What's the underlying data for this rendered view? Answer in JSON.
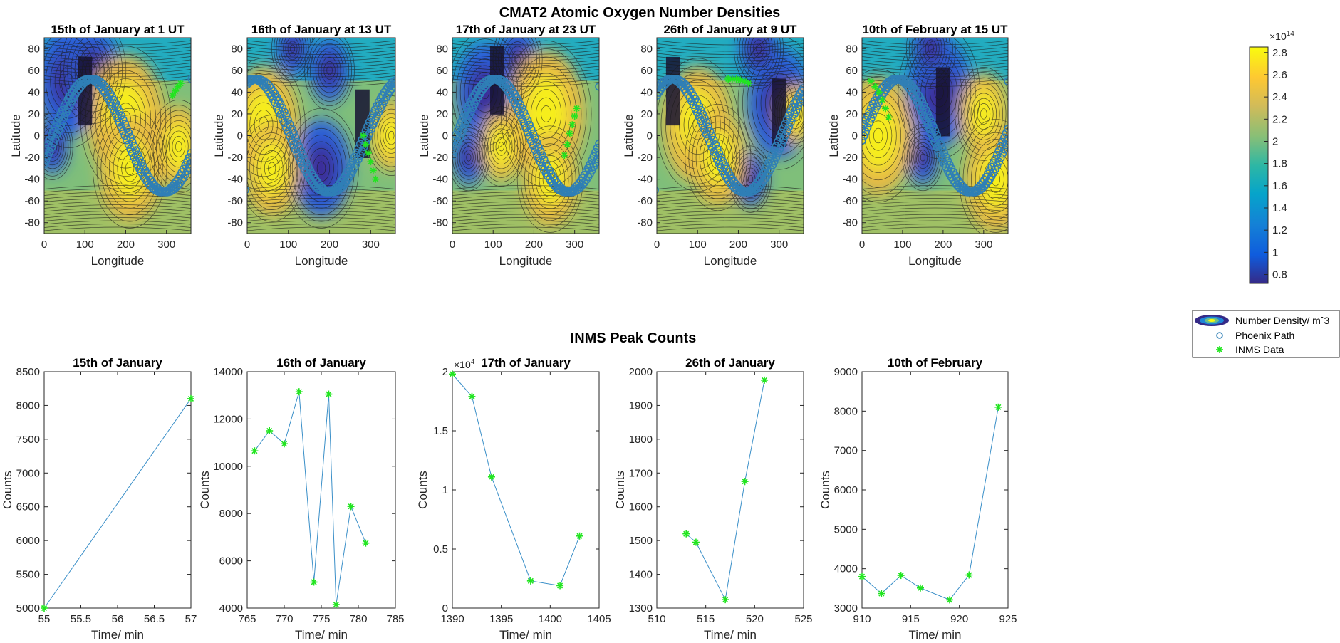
{
  "figure": {
    "top_title": "CMAT2 Atomic Oxygen Number Densities",
    "bottom_title": "INMS Peak Counts"
  },
  "colors": {
    "path": "#2f7fb6",
    "inms": "#21e51f",
    "line": "#3a8fc8",
    "axes": "#262626"
  },
  "legend": {
    "items": [
      {
        "label": "Number Density/ mˆ3",
        "icon": "filled-contour-ellipse-icon"
      },
      {
        "label": "Phoenix Path",
        "icon": "open-circle-marker-icon"
      },
      {
        "label": "INMS Data",
        "icon": "asterisk-marker-icon"
      }
    ]
  },
  "colorbar": {
    "ticks": [
      "2.8",
      "2.6",
      "2.4",
      "2.2",
      "2",
      "1.8",
      "1.6",
      "1.4",
      "1.2",
      "1",
      "0.8"
    ],
    "tick_values": [
      2.8,
      2.6,
      2.4,
      2.2,
      2.0,
      1.8,
      1.6,
      1.4,
      1.2,
      1.0,
      0.8
    ],
    "range": [
      0.72,
      2.85
    ],
    "exponent_base": "×10",
    "exponent_power": "14",
    "colormap": "parula"
  },
  "map_axes": {
    "xlabel": "Longitude",
    "ylabel": "Latitude",
    "xticks": [
      "0",
      "100",
      "200",
      "300"
    ],
    "yticks": [
      "80",
      "60",
      "40",
      "20",
      "0",
      "-20",
      "-40",
      "-60",
      "-80"
    ]
  },
  "chart_data": [
    {
      "type": "heatmap",
      "title": "15th of January at 1 UT",
      "xlabel": "Longitude",
      "ylabel": "Latitude",
      "xlim": [
        0,
        360
      ],
      "ylim": [
        -90,
        90
      ],
      "inms_points": [
        [
          315,
          37
        ],
        [
          322,
          41
        ],
        [
          328,
          45
        ],
        [
          335,
          48
        ]
      ]
    },
    {
      "type": "heatmap",
      "title": "16th of January at 13 UT",
      "xlabel": "Longitude",
      "ylabel": "Latitude",
      "xlim": [
        0,
        360
      ],
      "ylim": [
        -90,
        90
      ],
      "inms_points": [
        [
          282,
          0
        ],
        [
          288,
          -8
        ],
        [
          294,
          -16
        ],
        [
          300,
          -24
        ],
        [
          306,
          -32
        ],
        [
          312,
          -40
        ]
      ]
    },
    {
      "type": "heatmap",
      "title": "17th of January at 23 UT",
      "xlabel": "Longitude",
      "ylabel": "Latitude",
      "xlim": [
        0,
        360
      ],
      "ylim": [
        -90,
        90
      ],
      "inms_points": [
        [
          275,
          -18
        ],
        [
          282,
          -8
        ],
        [
          288,
          2
        ],
        [
          294,
          10
        ],
        [
          300,
          18
        ],
        [
          305,
          25
        ]
      ]
    },
    {
      "type": "heatmap",
      "title": "26th of January at 9 UT",
      "xlabel": "Longitude",
      "ylabel": "Latitude",
      "xlim": [
        0,
        360
      ],
      "ylim": [
        -90,
        90
      ],
      "inms_points": [
        [
          175,
          52
        ],
        [
          185,
          52
        ],
        [
          195,
          52
        ],
        [
          205,
          51
        ],
        [
          215,
          50
        ],
        [
          225,
          48
        ]
      ]
    },
    {
      "type": "heatmap",
      "title": "10th of February at 15 UT",
      "xlabel": "Longitude",
      "ylabel": "Latitude",
      "xlim": [
        0,
        360
      ],
      "ylim": [
        -90,
        90
      ],
      "inms_points": [
        [
          22,
          50
        ],
        [
          32,
          45
        ],
        [
          42,
          40
        ],
        [
          50,
          33
        ],
        [
          58,
          25
        ],
        [
          66,
          17
        ]
      ]
    },
    {
      "type": "line",
      "title": "15th of January",
      "xlabel": "Time/ min",
      "ylabel": "Counts",
      "xlim": [
        55,
        57
      ],
      "ylim": [
        5000,
        8500
      ],
      "xticks": [
        "55",
        "55.5",
        "56",
        "56.5",
        "57"
      ],
      "xtick_values": [
        55,
        55.5,
        56,
        56.5,
        57
      ],
      "yticks": [
        "8500",
        "8000",
        "7500",
        "7000",
        "6500",
        "6000",
        "5500",
        "5000"
      ],
      "ytick_values": [
        8500,
        8000,
        7500,
        7000,
        6500,
        6000,
        5500,
        5000
      ],
      "x": [
        55,
        57
      ],
      "y": [
        5000,
        8100
      ]
    },
    {
      "type": "line",
      "title": "16th of January",
      "xlabel": "Time/ min",
      "ylabel": "Counts",
      "xlim": [
        765,
        785
      ],
      "ylim": [
        4000,
        14000
      ],
      "xticks": [
        "765",
        "770",
        "775",
        "780",
        "785"
      ],
      "xtick_values": [
        765,
        770,
        775,
        780,
        785
      ],
      "yticks": [
        "14000",
        "12000",
        "10000",
        "8000",
        "6000",
        "4000"
      ],
      "ytick_values": [
        14000,
        12000,
        10000,
        8000,
        6000,
        4000
      ],
      "x": [
        766,
        768,
        770,
        772,
        774,
        776,
        777,
        779,
        781
      ],
      "y": [
        10650,
        11500,
        10950,
        13150,
        5100,
        13050,
        4150,
        8300,
        6750
      ]
    },
    {
      "type": "line",
      "title": "17th of January",
      "xlabel": "Time/ min",
      "ylabel": "Counts",
      "xlim": [
        1390,
        1405
      ],
      "ylim": [
        0,
        20000
      ],
      "xticks": [
        "1390",
        "1395",
        "1400",
        "1405"
      ],
      "xtick_values": [
        1390,
        1395,
        1400,
        1405
      ],
      "yticks": [
        "2",
        "1.5",
        "1",
        "0.5",
        "0"
      ],
      "ytick_values": [
        20000,
        15000,
        10000,
        5000,
        0
      ],
      "exponent_base": "×10",
      "exponent_power": "4",
      "x": [
        1390,
        1392,
        1394,
        1398,
        1401,
        1403
      ],
      "y": [
        19800,
        17900,
        11100,
        2300,
        1900,
        6100
      ]
    },
    {
      "type": "line",
      "title": "26th of January",
      "xlabel": "Time/ min",
      "ylabel": "Counts",
      "xlim": [
        510,
        525
      ],
      "ylim": [
        1300,
        2000
      ],
      "xticks": [
        "510",
        "515",
        "520",
        "525"
      ],
      "xtick_values": [
        510,
        515,
        520,
        525
      ],
      "yticks": [
        "2000",
        "1900",
        "1800",
        "1700",
        "1600",
        "1500",
        "1400",
        "1300"
      ],
      "ytick_values": [
        2000,
        1900,
        1800,
        1700,
        1600,
        1500,
        1400,
        1300
      ],
      "x": [
        513,
        514,
        517,
        519,
        521
      ],
      "y": [
        1520,
        1495,
        1325,
        1675,
        1975
      ]
    },
    {
      "type": "line",
      "title": "10th of February",
      "xlabel": "Time/ min",
      "ylabel": "Counts",
      "xlim": [
        910,
        925
      ],
      "ylim": [
        3000,
        9000
      ],
      "xticks": [
        "910",
        "915",
        "920",
        "925"
      ],
      "xtick_values": [
        910,
        915,
        920,
        925
      ],
      "yticks": [
        "9000",
        "8000",
        "7000",
        "6000",
        "5000",
        "4000",
        "3000"
      ],
      "ytick_values": [
        9000,
        8000,
        7000,
        6000,
        5000,
        4000,
        3000
      ],
      "x": [
        910,
        912,
        914,
        916,
        919,
        921,
        924
      ],
      "y": [
        3800,
        3370,
        3830,
        3510,
        3210,
        3840,
        8100
      ]
    }
  ]
}
